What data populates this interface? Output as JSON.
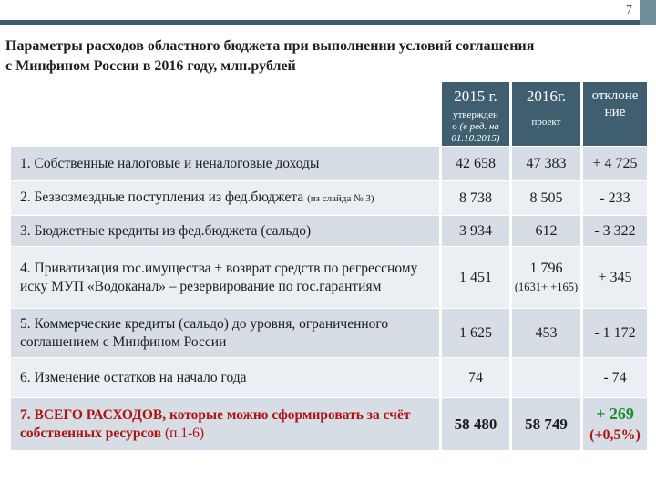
{
  "page_number": "7",
  "title_line1": "Параметры расходов областного бюджета при выполнении условий соглашения",
  "title_line2": "с Минфином России в 2016 году, млн.рублей",
  "header": {
    "col2015_year": "2015 г.",
    "col2015_sub1": "утвержден",
    "col2015_sub2": "о",
    "col2015_sub3": "(в ред. на 01.10.2015)",
    "col2016_year": "2016г.",
    "col2016_sub": "проект",
    "col_dev": "отклоне ние"
  },
  "rows": [
    {
      "label": "1. Собственные налоговые и неналоговые доходы",
      "v2015": "42 658",
      "v2016": "47 383",
      "dev": "+ 4 725"
    },
    {
      "label": "2. Безвозмездные поступления из фед.бюджета",
      "note": "(из слайда № 3)",
      "v2015": "8 738",
      "v2016": "8 505",
      "dev": "-  233"
    },
    {
      "label": "3. Бюджетные кредиты из фед.бюджета (сальдо)",
      "v2015": "3 934",
      "v2016": "612",
      "dev": "- 3 322"
    },
    {
      "label": "4.  Приватизация гос.имущества + возврат средств по регрессному иску МУП «Водоканал» – резервирование по гос.гарантиям",
      "v2015": "1 451",
      "v2016": "1 796",
      "v2016_note": "(1631+ +165)",
      "dev": "+ 345"
    },
    {
      "label": "5. Коммерческие кредиты (сальдо) до уровня, ограниченного соглашением с Минфином России",
      "v2015": "1 625",
      "v2016": "453",
      "dev": "- 1 172"
    },
    {
      "label": "6. Изменение остатков на начало года",
      "v2015": "74",
      "v2016": "",
      "dev": "- 74"
    }
  ],
  "total": {
    "label_bold": "7. ВСЕГО РАСХОДОВ, которые можно сформировать за счёт собственных ресурсов",
    "label_tail": " (п.1-6)",
    "v2015": "58 480",
    "v2016": "58 749",
    "dev1": "+ 269",
    "dev2": "(+0,5%)"
  },
  "colors": {
    "header_bg": "#3f5f70",
    "odd_row": "#d6dde4",
    "even_row": "#ebeff3",
    "total_red": "#b01111",
    "dev_green": "#1b8c2a"
  }
}
